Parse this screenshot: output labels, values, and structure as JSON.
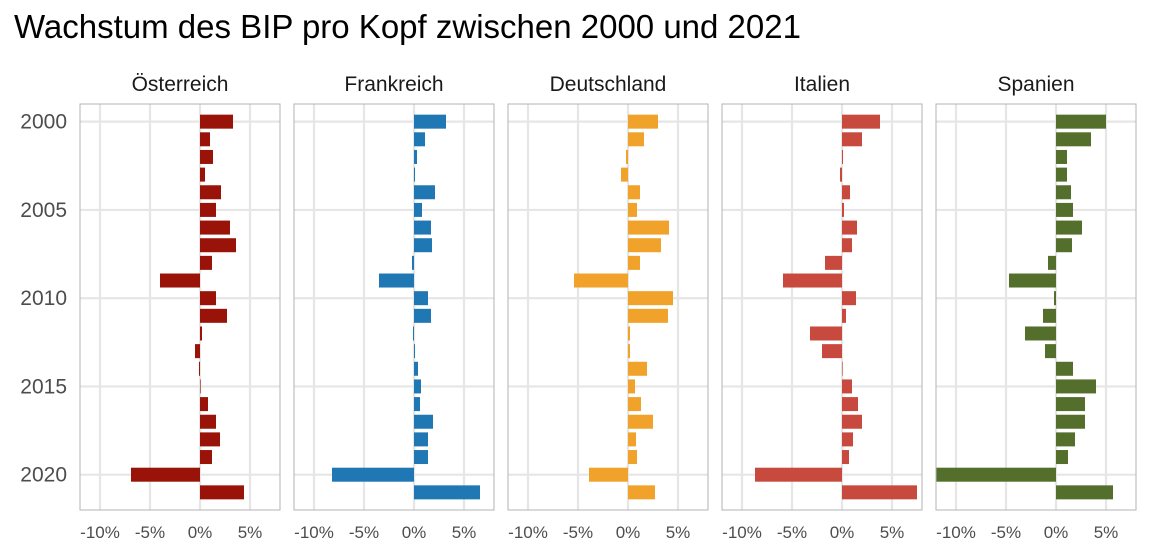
{
  "chart_data": {
    "type": "bar",
    "orientation": "horizontal",
    "facet": "small-multiples",
    "title": "Wachstum des BIP pro Kopf zwischen 2000 und 2021",
    "xlabel": "",
    "ylabel": "",
    "xlim": [
      -0.12,
      0.08
    ],
    "x_ticks": [
      -0.1,
      -0.05,
      0.0,
      0.05
    ],
    "x_tick_labels": [
      "-10%",
      "-5%",
      "0%",
      "5%"
    ],
    "y_ticks": [
      2000,
      2005,
      2010,
      2015,
      2020
    ],
    "y_tick_labels": [
      "2000",
      "2005",
      "2010",
      "2015",
      "2020"
    ],
    "years": [
      2000,
      2001,
      2002,
      2003,
      2004,
      2005,
      2006,
      2007,
      2008,
      2009,
      2010,
      2011,
      2012,
      2013,
      2014,
      2015,
      2016,
      2017,
      2018,
      2019,
      2020,
      2021
    ],
    "grid": true,
    "legend": "none",
    "panels": [
      {
        "name": "Österreich",
        "color": "#9a1309",
        "values": [
          0.033,
          0.01,
          0.013,
          0.005,
          0.021,
          0.016,
          0.03,
          0.036,
          0.012,
          -0.04,
          0.016,
          0.027,
          0.002,
          -0.005,
          -0.001,
          0.0,
          0.008,
          0.016,
          0.02,
          0.012,
          -0.069,
          0.044
        ]
      },
      {
        "name": "Frankreich",
        "color": "#1f78b4",
        "values": [
          0.032,
          0.011,
          0.003,
          0.001,
          0.021,
          0.008,
          0.017,
          0.018,
          -0.002,
          -0.035,
          0.014,
          0.017,
          -0.001,
          0.001,
          0.004,
          0.007,
          0.006,
          0.019,
          0.014,
          0.014,
          -0.082,
          0.066
        ]
      },
      {
        "name": "Deutschland",
        "color": "#f0a22b",
        "values": [
          0.03,
          0.016,
          -0.002,
          -0.007,
          0.012,
          0.009,
          0.041,
          0.033,
          0.012,
          -0.054,
          0.045,
          0.04,
          0.002,
          0.002,
          0.019,
          0.007,
          0.013,
          0.025,
          0.008,
          0.009,
          -0.039,
          0.027
        ]
      },
      {
        "name": "Italien",
        "color": "#c84a3f",
        "values": [
          0.038,
          0.02,
          0.001,
          -0.002,
          0.008,
          0.002,
          0.015,
          0.01,
          -0.017,
          -0.059,
          0.014,
          0.004,
          -0.032,
          -0.02,
          0.0,
          0.01,
          0.016,
          0.02,
          0.011,
          0.007,
          -0.087,
          0.075
        ]
      },
      {
        "name": "Spanien",
        "color": "#546e2b",
        "values": [
          0.05,
          0.035,
          0.011,
          0.011,
          0.015,
          0.017,
          0.026,
          0.016,
          -0.008,
          -0.047,
          -0.002,
          -0.013,
          -0.031,
          -0.011,
          0.017,
          0.04,
          0.029,
          0.029,
          0.019,
          0.012,
          -0.12,
          0.057
        ]
      }
    ]
  }
}
